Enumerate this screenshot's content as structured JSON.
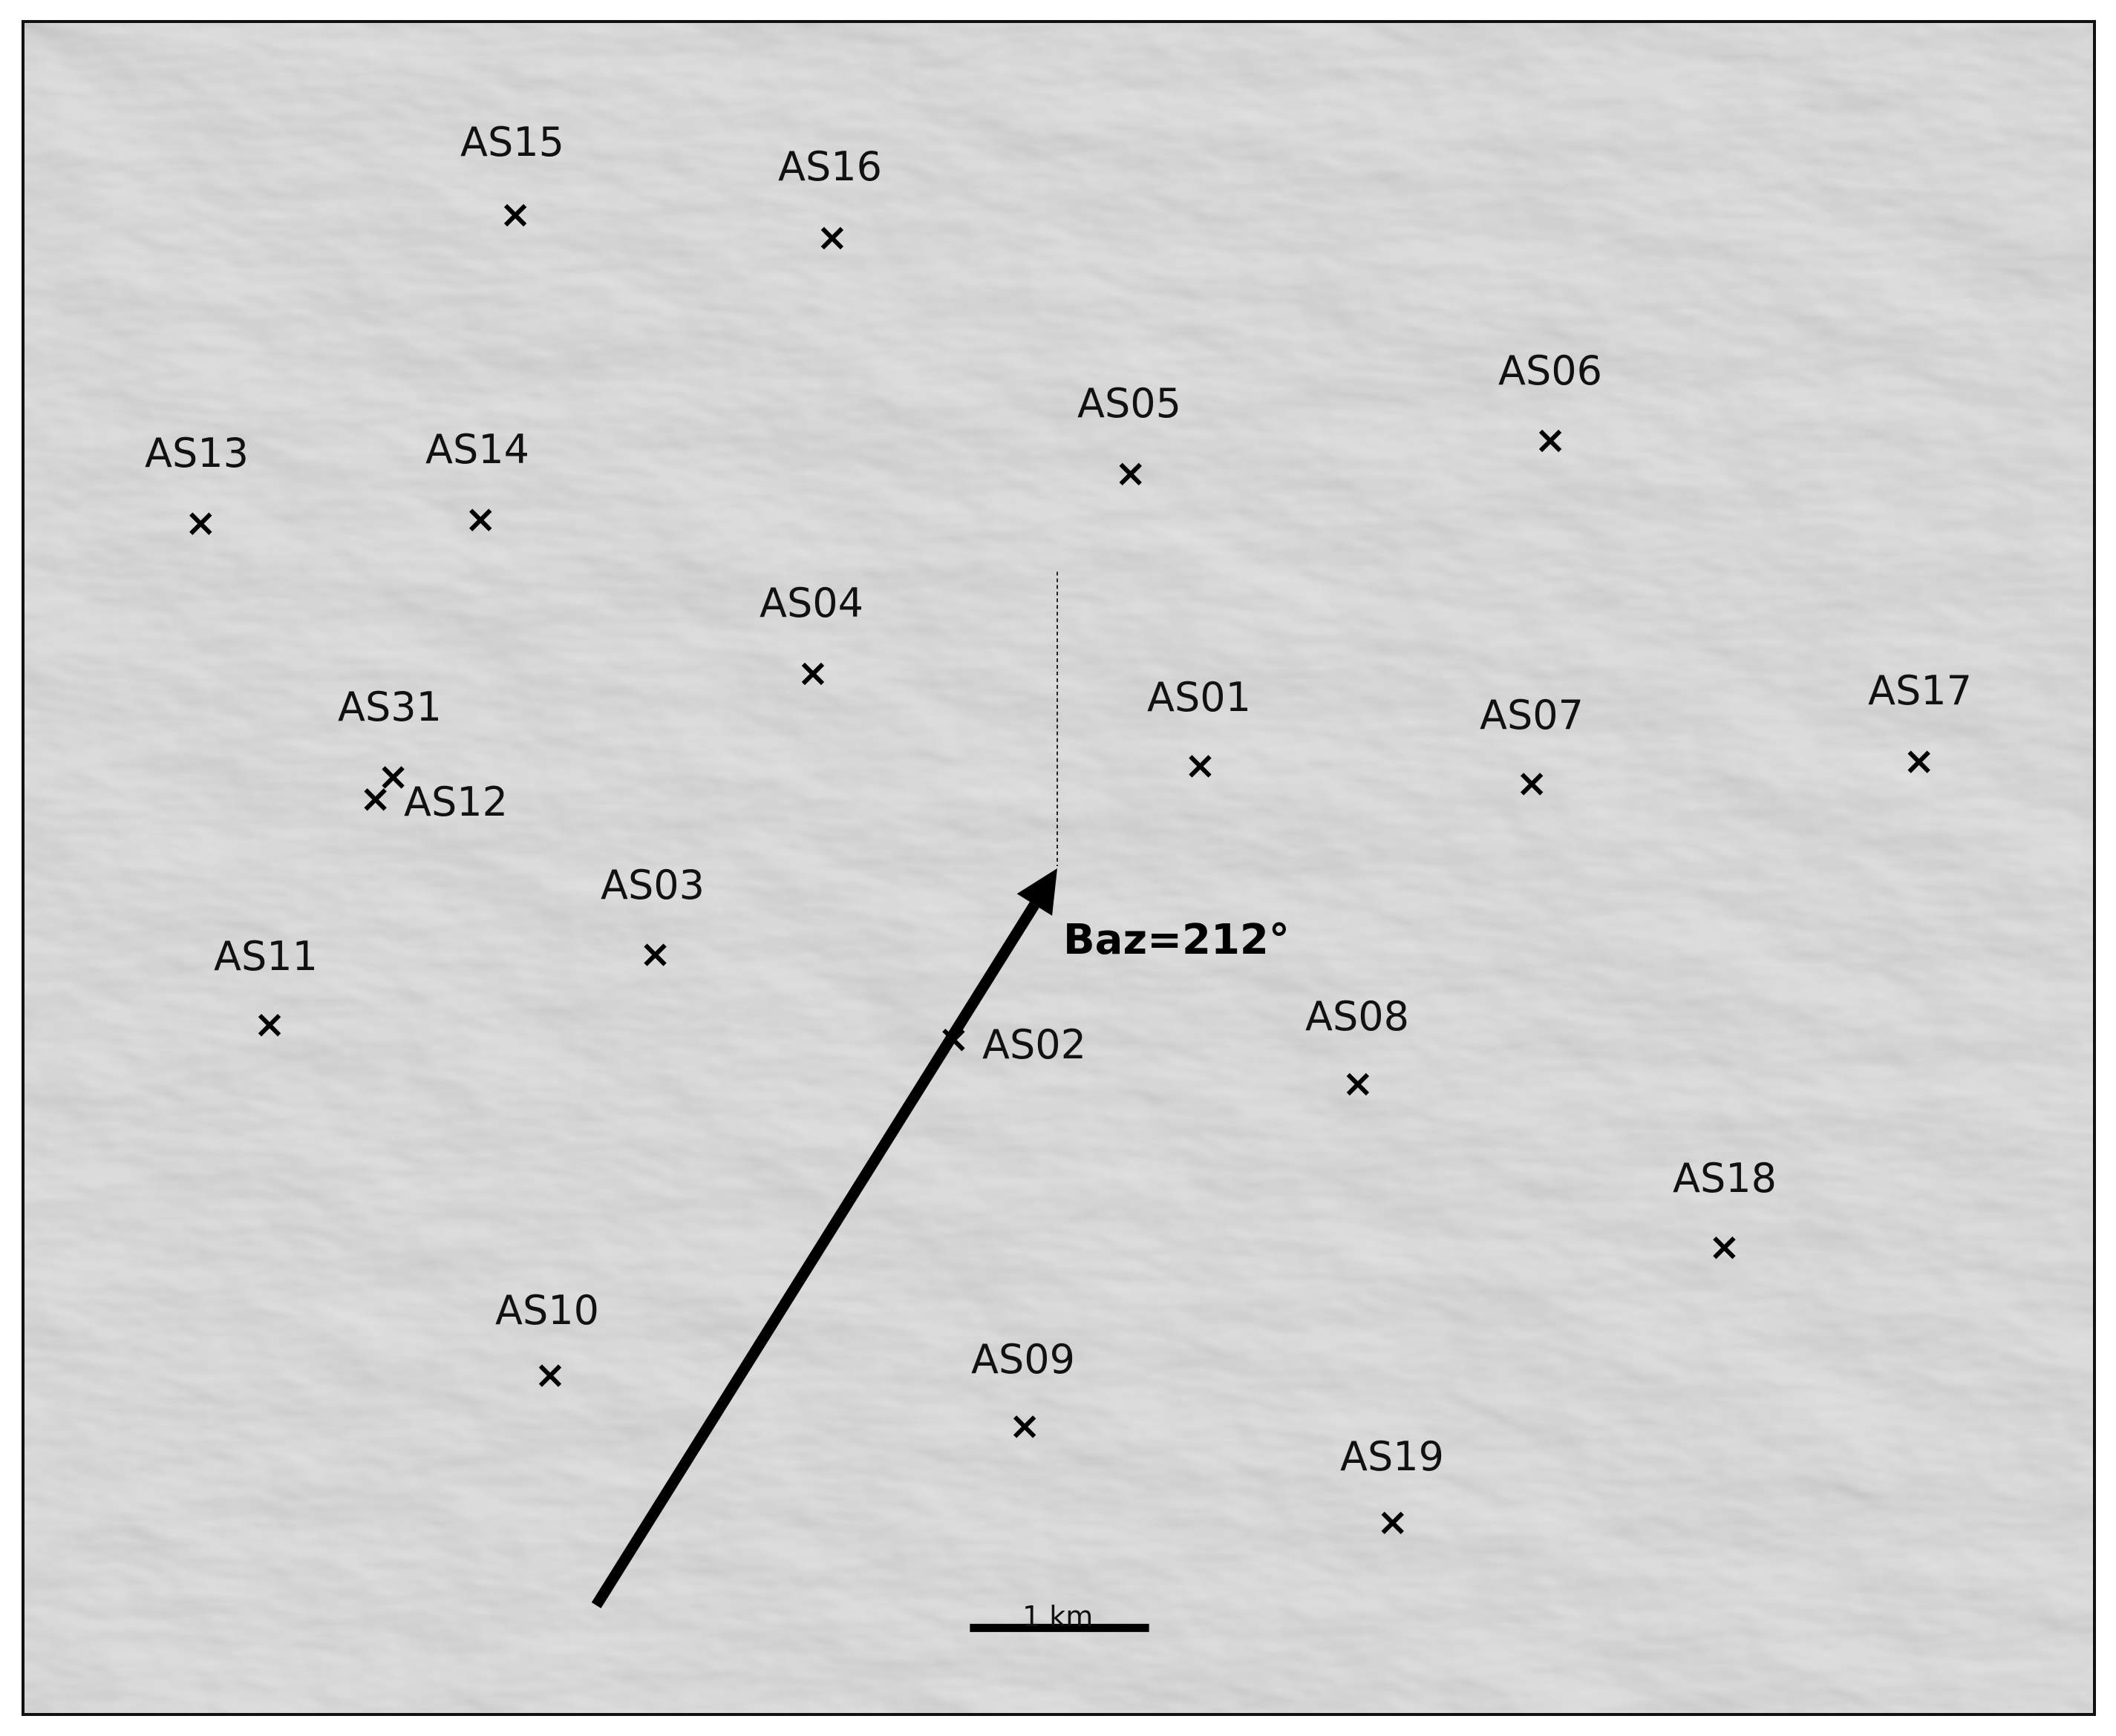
{
  "map": {
    "basemap": "grayscale shaded-relief terrain",
    "marker_symbol": "x-cross",
    "marker_color": "#000000",
    "stations": [
      {
        "id": "AS01",
        "label": "AS01"
      },
      {
        "id": "AS02",
        "label": "AS02"
      },
      {
        "id": "AS03",
        "label": "AS03"
      },
      {
        "id": "AS04",
        "label": "AS04"
      },
      {
        "id": "AS05",
        "label": "AS05"
      },
      {
        "id": "AS06",
        "label": "AS06"
      },
      {
        "id": "AS07",
        "label": "AS07"
      },
      {
        "id": "AS08",
        "label": "AS08"
      },
      {
        "id": "AS09",
        "label": "AS09"
      },
      {
        "id": "AS10",
        "label": "AS10"
      },
      {
        "id": "AS11",
        "label": "AS11"
      },
      {
        "id": "AS12",
        "label": "AS12"
      },
      {
        "id": "AS13",
        "label": "AS13"
      },
      {
        "id": "AS14",
        "label": "AS14"
      },
      {
        "id": "AS15",
        "label": "AS15"
      },
      {
        "id": "AS16",
        "label": "AS16"
      },
      {
        "id": "AS17",
        "label": "AS17"
      },
      {
        "id": "AS18",
        "label": "AS18"
      },
      {
        "id": "AS19",
        "label": "AS19"
      },
      {
        "id": "AS31",
        "label": "AS31"
      }
    ],
    "backazimuth": {
      "label": "Baz=212°",
      "value_deg": 212,
      "arrow_color": "#000000",
      "reference_line": "dashed north line"
    },
    "scale_bar": {
      "label": "1 km",
      "length_km": 1
    }
  }
}
